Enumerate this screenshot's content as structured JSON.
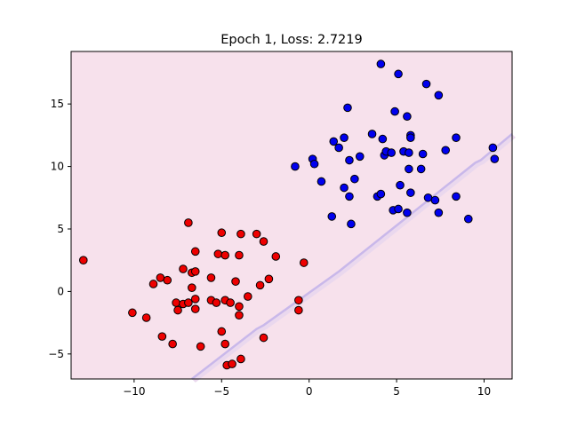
{
  "chart_data": {
    "type": "scatter",
    "title": "Epoch 1, Loss: 2.7219",
    "xlabel": "",
    "ylabel": "",
    "xlim": [
      -13.6,
      11.6
    ],
    "ylim": [
      -7.0,
      19.2
    ],
    "xticks": [
      -10,
      -5,
      0,
      5,
      10
    ],
    "yticks": [
      -5,
      0,
      5,
      10,
      15
    ],
    "grid": false,
    "colors": {
      "background": "#f7e1ec",
      "boundary_region": "#ead8ee",
      "boundary_line": "#c9b8ea",
      "class_red": "#ee0000",
      "class_blue": "#0000ee",
      "edge": "#000000"
    },
    "boundary": [
      [
        -6.7,
        -7.0
      ],
      [
        -3.0,
        -3.0
      ],
      [
        -2.6,
        -2.7
      ],
      [
        1.4,
        1.3
      ],
      [
        1.7,
        1.6
      ],
      [
        9.5,
        10.3
      ],
      [
        9.8,
        10.5
      ],
      [
        11.6,
        12.6
      ]
    ],
    "series": [
      {
        "color": "#ee0000",
        "points": [
          [
            -12.9,
            2.5
          ],
          [
            -10.1,
            -1.7
          ],
          [
            -9.3,
            -2.1
          ],
          [
            -8.9,
            0.6
          ],
          [
            -8.5,
            1.1
          ],
          [
            -8.4,
            -3.6
          ],
          [
            -8.1,
            0.9
          ],
          [
            -7.8,
            -4.2
          ],
          [
            -7.6,
            -0.9
          ],
          [
            -7.5,
            -1.5
          ],
          [
            -7.2,
            1.8
          ],
          [
            -7.2,
            -1.0
          ],
          [
            -6.9,
            5.5
          ],
          [
            -6.9,
            -0.9
          ],
          [
            -6.7,
            1.5
          ],
          [
            -6.7,
            0.3
          ],
          [
            -6.5,
            3.2
          ],
          [
            -6.5,
            1.6
          ],
          [
            -6.5,
            -0.6
          ],
          [
            -6.5,
            -1.4
          ],
          [
            -6.2,
            -4.4
          ],
          [
            -5.6,
            1.1
          ],
          [
            -5.6,
            -0.7
          ],
          [
            -5.3,
            -0.9
          ],
          [
            -5.2,
            3.0
          ],
          [
            -5.0,
            4.7
          ],
          [
            -5.0,
            -3.2
          ],
          [
            -4.8,
            2.9
          ],
          [
            -4.8,
            -0.7
          ],
          [
            -4.8,
            -4.2
          ],
          [
            -4.7,
            -5.9
          ],
          [
            -4.5,
            -0.9
          ],
          [
            -4.4,
            -5.8
          ],
          [
            -4.2,
            0.8
          ],
          [
            -4.0,
            2.9
          ],
          [
            -4.0,
            -1.2
          ],
          [
            -4.0,
            -1.9
          ],
          [
            -3.9,
            4.6
          ],
          [
            -3.9,
            -5.4
          ],
          [
            -3.5,
            -0.4
          ],
          [
            -3.0,
            4.6
          ],
          [
            -2.8,
            0.5
          ],
          [
            -2.6,
            4.0
          ],
          [
            -2.6,
            -3.7
          ],
          [
            -2.3,
            1.0
          ],
          [
            -1.9,
            2.8
          ],
          [
            -0.6,
            -0.7
          ],
          [
            -0.6,
            -1.5
          ],
          [
            -0.3,
            2.3
          ]
        ]
      },
      {
        "color": "#0000ee",
        "points": [
          [
            -0.8,
            10.0
          ],
          [
            0.2,
            10.6
          ],
          [
            0.3,
            10.2
          ],
          [
            0.7,
            8.8
          ],
          [
            1.3,
            6.0
          ],
          [
            1.4,
            12.0
          ],
          [
            1.7,
            11.5
          ],
          [
            2.0,
            8.3
          ],
          [
            2.0,
            12.3
          ],
          [
            2.2,
            14.7
          ],
          [
            2.3,
            10.5
          ],
          [
            2.3,
            7.6
          ],
          [
            2.4,
            5.4
          ],
          [
            2.6,
            9.0
          ],
          [
            2.9,
            10.8
          ],
          [
            3.6,
            12.6
          ],
          [
            3.9,
            7.6
          ],
          [
            4.1,
            7.8
          ],
          [
            4.1,
            18.2
          ],
          [
            4.2,
            12.2
          ],
          [
            4.3,
            10.9
          ],
          [
            4.4,
            11.2
          ],
          [
            4.7,
            11.1
          ],
          [
            4.8,
            6.5
          ],
          [
            4.9,
            14.4
          ],
          [
            5.1,
            17.4
          ],
          [
            5.1,
            6.6
          ],
          [
            5.2,
            8.5
          ],
          [
            5.4,
            11.2
          ],
          [
            5.6,
            14.0
          ],
          [
            5.6,
            6.3
          ],
          [
            5.7,
            11.1
          ],
          [
            5.7,
            9.8
          ],
          [
            5.8,
            12.5
          ],
          [
            5.8,
            12.3
          ],
          [
            5.8,
            7.9
          ],
          [
            6.4,
            9.8
          ],
          [
            6.5,
            11.0
          ],
          [
            6.7,
            16.6
          ],
          [
            6.8,
            7.5
          ],
          [
            7.2,
            7.3
          ],
          [
            7.4,
            15.7
          ],
          [
            7.4,
            6.3
          ],
          [
            7.8,
            11.3
          ],
          [
            8.4,
            12.3
          ],
          [
            8.4,
            7.6
          ],
          [
            9.1,
            5.8
          ],
          [
            10.5,
            11.5
          ],
          [
            10.6,
            10.6
          ]
        ]
      }
    ]
  }
}
